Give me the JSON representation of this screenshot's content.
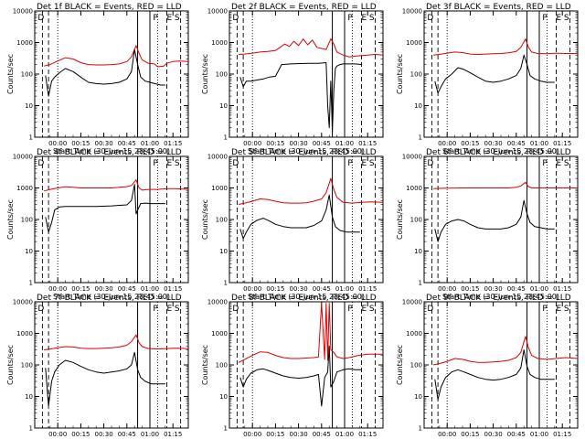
{
  "axes_common": {
    "ylabel": "Counts/sec",
    "xlabel": "Start Time (30-Jun-15 23:45:00)",
    "xtick_labels": [
      "00:00",
      "00:15",
      "00:30",
      "00:45",
      "01:00",
      "01:15"
    ],
    "xtick_minutes": [
      15,
      30,
      45,
      60,
      75,
      90
    ],
    "ytick_labels": [
      "1",
      "10",
      "100",
      "1000",
      "10000"
    ],
    "xlim_minutes": [
      0,
      100
    ],
    "ylim": [
      1,
      10000
    ],
    "yscale": "log",
    "colors": {
      "events": "#000000",
      "lld": "#e00000"
    }
  },
  "chart_data": [
    {
      "type": "line",
      "title": "Det 1f BLACK = Events, RED = LLD",
      "markers": [
        {
          "label": "D",
          "x": 2
        },
        {
          "label": "P",
          "x": 77
        },
        {
          "label": "E",
          "x": 86
        },
        {
          "label": "S",
          "x": 91
        }
      ],
      "series": [
        {
          "color": "#e00000",
          "x": [
            6,
            10,
            15,
            20,
            25,
            30,
            35,
            40,
            45,
            50,
            55,
            60,
            63,
            66,
            68,
            70,
            74,
            78,
            80,
            84,
            86,
            90,
            94,
            100
          ],
          "values": [
            180,
            200,
            260,
            330,
            300,
            230,
            200,
            195,
            195,
            200,
            210,
            250,
            350,
            800,
            450,
            280,
            220,
            210,
            170,
            180,
            220,
            250,
            260,
            250
          ]
        },
        {
          "color": "#000000",
          "x": [
            7,
            9,
            11,
            13,
            16,
            20,
            25,
            30,
            35,
            40,
            45,
            50,
            55,
            60,
            63,
            65,
            67,
            69,
            72,
            75,
            78,
            82,
            85
          ],
          "values": [
            90,
            20,
            60,
            80,
            110,
            150,
            120,
            80,
            55,
            50,
            48,
            50,
            55,
            70,
            120,
            600,
            200,
            80,
            60,
            55,
            50,
            45,
            45
          ]
        }
      ]
    },
    {
      "type": "line",
      "title": "Det 2f BLACK = Events, RED = LLD",
      "markers": [
        {
          "label": "D",
          "x": 2
        },
        {
          "label": "P",
          "x": 77
        },
        {
          "label": "E",
          "x": 86
        },
        {
          "label": "S",
          "x": 91
        }
      ],
      "series": [
        {
          "color": "#e00000",
          "x": [
            6,
            10,
            15,
            20,
            25,
            30,
            33,
            36,
            39,
            42,
            45,
            48,
            51,
            54,
            57,
            60,
            63,
            66,
            68,
            70,
            74,
            78,
            84,
            90,
            95,
            100
          ],
          "values": [
            420,
            430,
            460,
            500,
            520,
            560,
            700,
            900,
            750,
            1100,
            800,
            1300,
            850,
            1200,
            700,
            650,
            600,
            1300,
            900,
            500,
            400,
            350,
            380,
            400,
            420,
            400
          ]
        },
        {
          "color": "#000000",
          "x": [
            7,
            9,
            11,
            14,
            18,
            22,
            26,
            30,
            34,
            40,
            46,
            52,
            58,
            63,
            64,
            65,
            66,
            67,
            68,
            69,
            70,
            72,
            74,
            78,
            82,
            86
          ],
          "values": [
            80,
            40,
            60,
            60,
            65,
            70,
            80,
            85,
            200,
            210,
            215,
            220,
            220,
            230,
            10,
            2,
            60,
            1.5,
            30,
            150,
            180,
            200,
            210,
            210,
            210,
            200
          ]
        }
      ]
    },
    {
      "type": "line",
      "title": "Det 3f BLACK = Events, RED = LLD",
      "markers": [
        {
          "label": "D",
          "x": 2
        },
        {
          "label": "P",
          "x": 77
        },
        {
          "label": "E",
          "x": 86
        },
        {
          "label": "S",
          "x": 91
        }
      ],
      "series": [
        {
          "color": "#e00000",
          "x": [
            6,
            10,
            15,
            20,
            25,
            30,
            35,
            40,
            45,
            50,
            55,
            60,
            63,
            66,
            68,
            70,
            74,
            80,
            86,
            92,
            100
          ],
          "values": [
            400,
            420,
            460,
            500,
            480,
            430,
            420,
            430,
            440,
            450,
            470,
            520,
            700,
            1300,
            700,
            500,
            450,
            440,
            460,
            450,
            450
          ]
        },
        {
          "color": "#000000",
          "x": [
            7,
            9,
            11,
            14,
            18,
            22,
            26,
            30,
            35,
            40,
            45,
            50,
            55,
            60,
            63,
            65,
            67,
            69,
            72,
            76,
            80,
            85
          ],
          "values": [
            60,
            25,
            40,
            70,
            100,
            160,
            140,
            110,
            80,
            60,
            55,
            60,
            70,
            90,
            150,
            400,
            200,
            90,
            70,
            60,
            55,
            55
          ]
        }
      ]
    },
    {
      "type": "line",
      "title": "Det 4f BLACK = Events, RED = LLD",
      "markers": [
        {
          "label": "D",
          "x": 2
        },
        {
          "label": "P",
          "x": 77
        },
        {
          "label": "E",
          "x": 86
        },
        {
          "label": "S",
          "x": 91
        }
      ],
      "series": [
        {
          "color": "#e00000",
          "x": [
            6,
            10,
            15,
            20,
            25,
            30,
            35,
            40,
            45,
            50,
            55,
            60,
            63,
            66,
            68,
            70,
            74,
            80,
            86,
            92,
            100
          ],
          "values": [
            800,
            900,
            1000,
            1100,
            1050,
            1000,
            1000,
            1000,
            1000,
            1000,
            1050,
            1100,
            1200,
            1800,
            1000,
            850,
            900,
            900,
            950,
            950,
            900
          ]
        },
        {
          "color": "#000000",
          "x": [
            7,
            9,
            11,
            13,
            16,
            20,
            30,
            40,
            50,
            60,
            63,
            65,
            66,
            67,
            69,
            72,
            76,
            80,
            85
          ],
          "values": [
            120,
            40,
            80,
            200,
            250,
            260,
            260,
            260,
            270,
            290,
            400,
            1300,
            150,
            200,
            320,
            330,
            320,
            320,
            320
          ]
        }
      ]
    },
    {
      "type": "line",
      "title": "Det 5f BLACK = Events, RED = LLD",
      "markers": [
        {
          "label": "D",
          "x": 2
        },
        {
          "label": "P",
          "x": 77
        },
        {
          "label": "E",
          "x": 86
        },
        {
          "label": "S",
          "x": 91
        }
      ],
      "series": [
        {
          "color": "#e00000",
          "x": [
            6,
            10,
            15,
            20,
            25,
            30,
            35,
            40,
            45,
            50,
            55,
            60,
            63,
            66,
            68,
            70,
            74,
            80,
            86,
            92,
            100
          ],
          "values": [
            300,
            330,
            380,
            450,
            430,
            380,
            340,
            330,
            330,
            340,
            380,
            450,
            700,
            2000,
            900,
            500,
            350,
            330,
            350,
            360,
            350
          ]
        },
        {
          "color": "#000000",
          "x": [
            7,
            9,
            11,
            14,
            18,
            22,
            26,
            30,
            35,
            40,
            45,
            50,
            55,
            60,
            63,
            65,
            67,
            69,
            72,
            76,
            80,
            85
          ],
          "values": [
            50,
            25,
            40,
            70,
            95,
            110,
            90,
            70,
            60,
            55,
            55,
            55,
            65,
            90,
            200,
            600,
            120,
            60,
            45,
            40,
            40,
            40
          ]
        }
      ]
    },
    {
      "type": "line",
      "title": "Det 6f BLACK = Events, RED = LLD",
      "markers": [
        {
          "label": "D",
          "x": 2
        },
        {
          "label": "P",
          "x": 77
        },
        {
          "label": "E",
          "x": 86
        },
        {
          "label": "S",
          "x": 91
        }
      ],
      "series": [
        {
          "color": "#e00000",
          "x": [
            6,
            15,
            25,
            35,
            45,
            55,
            60,
            63,
            66,
            68,
            70,
            80,
            90,
            100
          ],
          "values": [
            950,
            980,
            1000,
            1000,
            1000,
            1000,
            1050,
            1150,
            1500,
            1100,
            1000,
            1000,
            1000,
            1000
          ]
        },
        {
          "color": "#000000",
          "x": [
            7,
            9,
            11,
            14,
            18,
            22,
            26,
            30,
            35,
            40,
            45,
            50,
            55,
            60,
            63,
            65,
            67,
            69,
            72,
            76,
            80,
            85
          ],
          "values": [
            50,
            20,
            40,
            70,
            90,
            100,
            90,
            70,
            55,
            50,
            50,
            50,
            55,
            70,
            120,
            400,
            150,
            80,
            60,
            55,
            50,
            50
          ]
        }
      ]
    },
    {
      "type": "line",
      "title": "Det 7f BLACK = Events, RED = LLD",
      "markers": [
        {
          "label": "D",
          "x": 2
        },
        {
          "label": "P",
          "x": 77
        },
        {
          "label": "E",
          "x": 86
        },
        {
          "label": "S",
          "x": 91
        }
      ],
      "series": [
        {
          "color": "#e00000",
          "x": [
            6,
            10,
            15,
            20,
            25,
            30,
            35,
            40,
            45,
            50,
            55,
            60,
            63,
            66,
            68,
            70,
            74,
            80,
            86,
            92,
            100
          ],
          "values": [
            300,
            320,
            350,
            380,
            370,
            340,
            330,
            330,
            340,
            350,
            370,
            420,
            550,
            900,
            500,
            380,
            330,
            320,
            330,
            340,
            330
          ]
        },
        {
          "color": "#000000",
          "x": [
            7,
            9,
            11,
            13,
            16,
            20,
            25,
            30,
            35,
            40,
            45,
            50,
            55,
            60,
            63,
            65,
            67,
            69,
            72,
            76,
            80,
            85
          ],
          "values": [
            80,
            5,
            30,
            60,
            100,
            140,
            120,
            90,
            70,
            60,
            55,
            60,
            65,
            75,
            100,
            250,
            70,
            40,
            30,
            25,
            25,
            25
          ]
        }
      ]
    },
    {
      "type": "line",
      "title": "Det 8f BLACK = Events, RED = LLD",
      "markers": [
        {
          "label": "D",
          "x": 2
        },
        {
          "label": "P",
          "x": 77
        },
        {
          "label": "E",
          "x": 86
        },
        {
          "label": "S",
          "x": 91
        }
      ],
      "series": [
        {
          "color": "#e00000",
          "x": [
            6,
            10,
            15,
            20,
            25,
            30,
            35,
            40,
            45,
            50,
            55,
            58,
            60,
            62,
            63,
            64,
            65,
            66,
            68,
            70,
            74,
            78,
            84,
            90,
            95,
            100
          ],
          "values": [
            120,
            150,
            200,
            260,
            250,
            200,
            170,
            160,
            160,
            165,
            170,
            180,
            9000,
            150,
            9000,
            140,
            9000,
            300,
            250,
            180,
            160,
            170,
            200,
            220,
            220,
            220
          ]
        },
        {
          "color": "#000000",
          "x": [
            7,
            9,
            11,
            14,
            18,
            22,
            26,
            30,
            35,
            40,
            45,
            50,
            55,
            58,
            60,
            62,
            64,
            65,
            66,
            68,
            70,
            74,
            78,
            82,
            86
          ],
          "values": [
            40,
            20,
            35,
            55,
            70,
            75,
            65,
            55,
            45,
            40,
            38,
            40,
            45,
            50,
            5,
            40,
            60,
            400,
            20,
            30,
            60,
            70,
            75,
            70,
            70
          ]
        }
      ]
    },
    {
      "type": "line",
      "title": "Det 9f BLACK = Events, RED = LLD",
      "markers": [
        {
          "label": "D",
          "x": 2
        },
        {
          "label": "P",
          "x": 77
        },
        {
          "label": "E",
          "x": 86
        },
        {
          "label": "S",
          "x": 91
        }
      ],
      "series": [
        {
          "color": "#e00000",
          "x": [
            6,
            10,
            15,
            20,
            25,
            30,
            35,
            40,
            45,
            50,
            55,
            60,
            63,
            66,
            68,
            70,
            74,
            80,
            86,
            92,
            100
          ],
          "values": [
            100,
            110,
            130,
            160,
            150,
            130,
            120,
            120,
            125,
            130,
            140,
            170,
            250,
            800,
            350,
            200,
            160,
            150,
            160,
            170,
            160
          ]
        },
        {
          "color": "#000000",
          "x": [
            7,
            9,
            11,
            14,
            18,
            22,
            26,
            30,
            35,
            40,
            45,
            50,
            55,
            60,
            63,
            65,
            67,
            69,
            72,
            76,
            80,
            85
          ],
          "values": [
            35,
            8,
            20,
            40,
            60,
            70,
            60,
            50,
            40,
            35,
            33,
            35,
            40,
            50,
            80,
            300,
            90,
            50,
            40,
            35,
            35,
            35
          ]
        }
      ]
    }
  ]
}
